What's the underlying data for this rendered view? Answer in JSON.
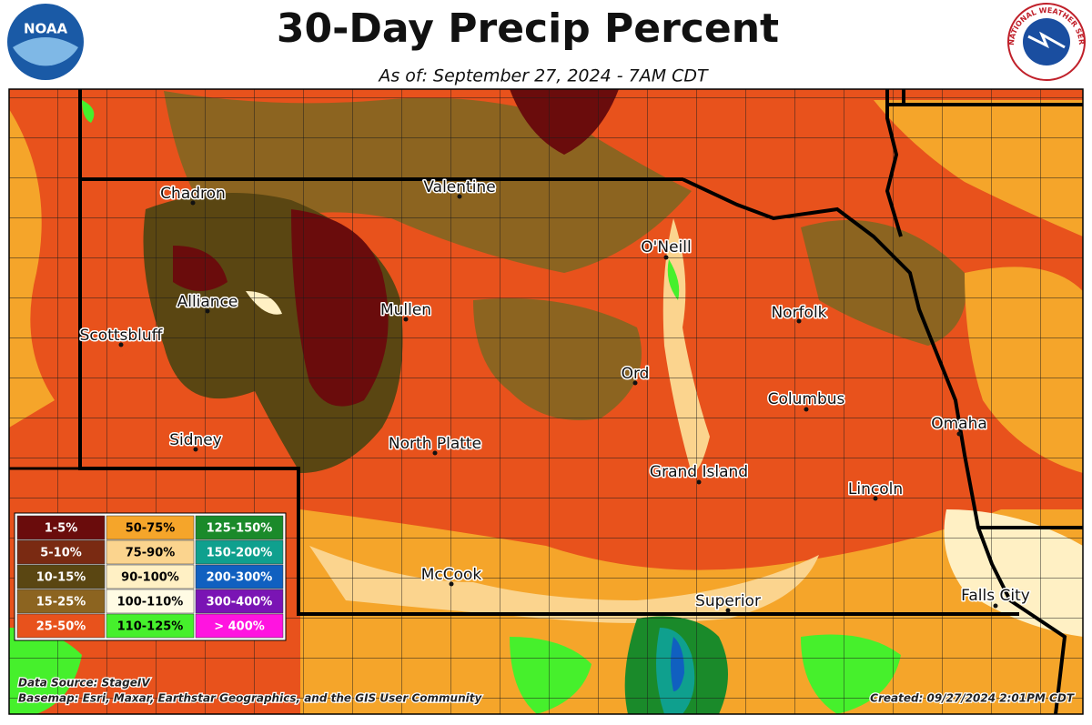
{
  "header": {
    "title": "30-Day Precip Percent",
    "subtitle": "As of: September 27, 2024 - 7AM CDT"
  },
  "logos": {
    "left": "NOAA",
    "right": "NATIONAL WEATHER SERVICE"
  },
  "cities": [
    "Chadron",
    "Valentine",
    "O'Neill",
    "Alliance",
    "Scottsbluff",
    "Mullen",
    "Norfolk",
    "Ord",
    "Columbus",
    "Omaha",
    "Sidney",
    "North Platte",
    "Grand Island",
    "Lincoln",
    "McCook",
    "Superior",
    "Falls City"
  ],
  "legend": {
    "items": [
      {
        "label": "1-5%",
        "color": "#6a0c0c"
      },
      {
        "label": "5-10%",
        "color": "#7a2a12"
      },
      {
        "label": "10-15%",
        "color": "#5a4612"
      },
      {
        "label": "15-25%",
        "color": "#8c6420"
      },
      {
        "label": "25-50%",
        "color": "#e8521c"
      },
      {
        "label": "50-75%",
        "color": "#f5a52a"
      },
      {
        "label": "75-90%",
        "color": "#fbd48e"
      },
      {
        "label": "90-100%",
        "color": "#fff0c4"
      },
      {
        "label": "100-110%",
        "color": "#fffbe4"
      },
      {
        "label": "110-125%",
        "color": "#46f02c"
      },
      {
        "label": "125-150%",
        "color": "#1a8a2a"
      },
      {
        "label": "150-200%",
        "color": "#0fa08e"
      },
      {
        "label": "200-300%",
        "color": "#1060c0"
      },
      {
        "label": "300-400%",
        "color": "#7a14b4"
      },
      {
        "label": "> 400%",
        "color": "#ff14e0"
      }
    ]
  },
  "footer": {
    "source": "Data Source: StageIV",
    "basemap": "Basemap: Esri, Maxar, Earthstar Geographics, and the GIS User Community",
    "created": "Created: 09/27/2024 2:01PM CDT"
  }
}
